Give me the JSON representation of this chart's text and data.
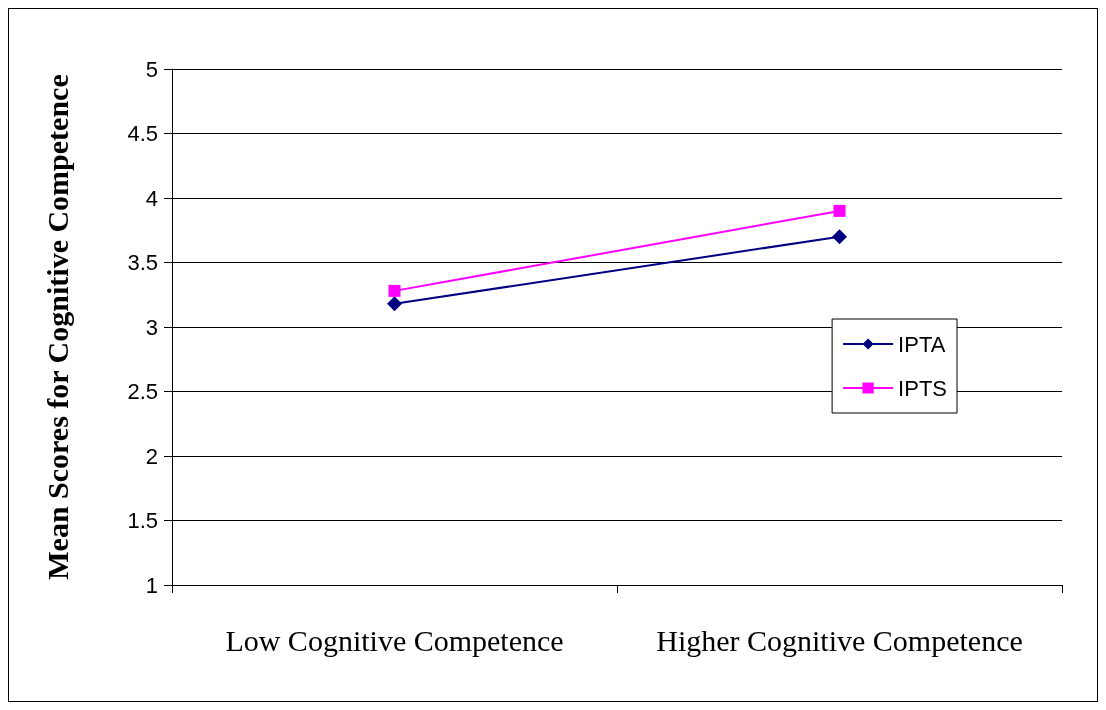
{
  "chart_data": {
    "type": "line",
    "ylabel": "Mean Scores for Cognitive Competence",
    "categories": [
      "Low Cognitive Competence",
      "Higher Cognitive Competence"
    ],
    "series": [
      {
        "name": "IPTA",
        "color": "#000080",
        "marker": "diamond",
        "values": [
          3.18,
          3.7
        ]
      },
      {
        "name": "IPTS",
        "color": "#ff00ff",
        "marker": "square",
        "values": [
          3.28,
          3.9
        ]
      }
    ],
    "ylim": [
      1,
      5
    ],
    "yticks": [
      1,
      1.5,
      2,
      2.5,
      3,
      3.5,
      4,
      4.5,
      5
    ],
    "grid": "y",
    "legend": "right",
    "line_style": "solid"
  }
}
